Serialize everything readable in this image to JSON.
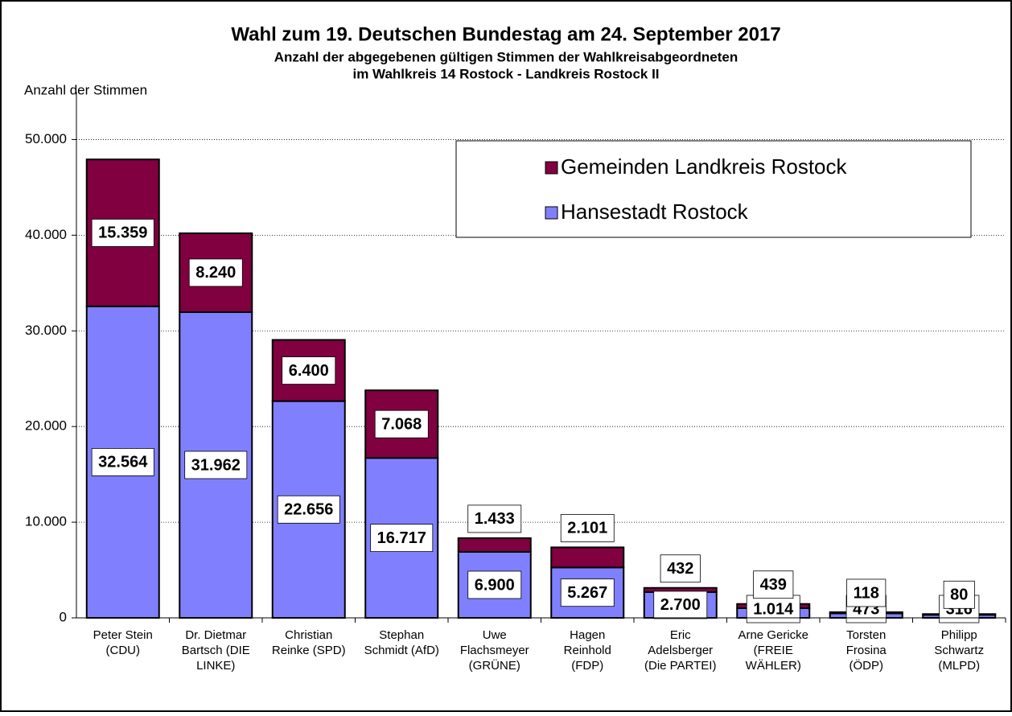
{
  "chart_data": {
    "type": "stacked_bar",
    "title": "Wahl zum 19. Deutschen Bundestag am 24. September 2017",
    "subtitle": [
      "Anzahl der abgegebenen gültigen Stimmen der Wahlkreisabgeordneten",
      "im Wahlkreis 14   Rostock - Landkreis Rostock II"
    ],
    "y_label": "Anzahl der Stimmen",
    "categories": [
      [
        "Peter Stein",
        "(CDU)"
      ],
      [
        "Dr. Dietmar",
        "Bartsch (DIE",
        "LINKE)"
      ],
      [
        "Christian",
        "Reinke (SPD)"
      ],
      [
        "Stephan",
        "Schmidt (AfD)"
      ],
      [
        "Uwe",
        "Flachsmeyer",
        "(GRÜNE)"
      ],
      [
        "Hagen",
        "Reinhold",
        "(FDP)"
      ],
      [
        "Eric",
        "Adelsberger",
        "(Die PARTEI)"
      ],
      [
        "Arne Gericke",
        "(FREIE",
        "WÄHLER)"
      ],
      [
        "Torsten",
        "Frosina",
        "(ÖDP)"
      ],
      [
        "Philipp",
        "Schwartz",
        "(MLPD)"
      ]
    ],
    "series": [
      {
        "name": "Hansestadt Rostock",
        "color": "#8080ff",
        "values": [
          32564,
          31962,
          22656,
          16717,
          6900,
          5267,
          2700,
          1014,
          473,
          316
        ],
        "value_labels": [
          "32.564",
          "31.962",
          "22.656",
          "16.717",
          "6.900",
          "5.267",
          "2.700",
          "1.014",
          "473",
          "316"
        ]
      },
      {
        "name": "Gemeinden Landkreis Rostock",
        "color": "#800040",
        "values": [
          15359,
          8240,
          6400,
          7068,
          1433,
          2101,
          432,
          439,
          118,
          80
        ],
        "value_labels": [
          "15.359",
          "8.240",
          "6.400",
          "7.068",
          "1.433",
          "2.101",
          "432",
          "439",
          "118",
          "80"
        ]
      }
    ],
    "ylim": [
      0,
      55000
    ],
    "yticks": [
      0,
      {
        "value": 10000,
        "label": "10.000"
      },
      {
        "value": 20000,
        "label": "20.000"
      },
      {
        "value": 30000,
        "label": "30.000"
      },
      {
        "value": 40000,
        "label": "40.000"
      },
      {
        "value": 50000,
        "label": "50.000"
      }
    ],
    "grid": true,
    "legend": "upper right"
  }
}
